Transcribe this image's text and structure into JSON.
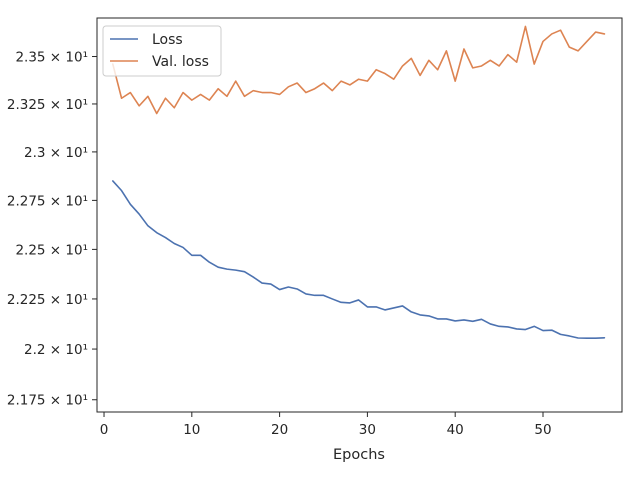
{
  "chart_data": {
    "type": "line",
    "title": "",
    "xlabel": "Epochs",
    "ylabel": "",
    "xlim": [
      -0.8,
      59.0
    ],
    "ylim": [
      21.69,
      23.705
    ],
    "yscale": "log",
    "grid": false,
    "legend_position": "top-left",
    "x_ticks": [
      0,
      10,
      20,
      30,
      40,
      50
    ],
    "x_tick_labels": [
      "0",
      "10",
      "20",
      "30",
      "40",
      "50"
    ],
    "y_ticks": [
      21.75,
      22.0,
      22.25,
      22.5,
      22.75,
      23.0,
      23.25,
      23.5
    ],
    "y_tick_labels": [
      "2.175 × 10¹",
      "2.2 × 10¹",
      "2.225 × 10¹",
      "2.25 × 10¹",
      "2.275 × 10¹",
      "2.3 × 10¹",
      "2.325 × 10¹",
      "2.35 × 10¹"
    ],
    "x": [
      1,
      2,
      3,
      4,
      5,
      6,
      7,
      8,
      9,
      10,
      11,
      12,
      13,
      14,
      15,
      16,
      17,
      18,
      19,
      20,
      21,
      22,
      23,
      24,
      25,
      26,
      27,
      28,
      29,
      30,
      31,
      32,
      33,
      34,
      35,
      36,
      37,
      38,
      39,
      40,
      41,
      42,
      43,
      44,
      45,
      46,
      47,
      48,
      49,
      50,
      51,
      52,
      53,
      54,
      55,
      56,
      57
    ],
    "series": [
      {
        "name": "Loss",
        "color": "#4c72b0",
        "values": [
          22.85,
          22.8,
          22.73,
          22.68,
          22.62,
          22.585,
          22.56,
          22.53,
          22.51,
          22.47,
          22.47,
          22.435,
          22.41,
          22.4,
          22.395,
          22.387,
          22.36,
          22.33,
          22.325,
          22.297,
          22.31,
          22.3,
          22.275,
          22.268,
          22.268,
          22.25,
          22.233,
          22.23,
          22.245,
          22.21,
          22.21,
          22.195,
          22.205,
          22.215,
          22.185,
          22.17,
          22.165,
          22.15,
          22.15,
          22.14,
          22.145,
          22.138,
          22.148,
          22.125,
          22.113,
          22.11,
          22.1,
          22.097,
          22.113,
          22.092,
          22.094,
          22.073,
          22.065,
          22.055,
          22.054,
          22.054,
          22.056
        ]
      },
      {
        "name": "Val. loss",
        "color": "#dd8452",
        "values": [
          23.46,
          23.28,
          23.31,
          23.24,
          23.29,
          23.2,
          23.28,
          23.23,
          23.31,
          23.27,
          23.3,
          23.27,
          23.33,
          23.29,
          23.37,
          23.29,
          23.32,
          23.31,
          23.31,
          23.3,
          23.34,
          23.36,
          23.31,
          23.33,
          23.36,
          23.32,
          23.37,
          23.35,
          23.38,
          23.37,
          23.43,
          23.41,
          23.38,
          23.45,
          23.49,
          23.4,
          23.48,
          23.43,
          23.53,
          23.37,
          23.54,
          23.44,
          23.45,
          23.48,
          23.45,
          23.51,
          23.47,
          23.66,
          23.46,
          23.58,
          23.62,
          23.64,
          23.55,
          23.53,
          23.58,
          23.63,
          23.62
        ]
      }
    ]
  }
}
